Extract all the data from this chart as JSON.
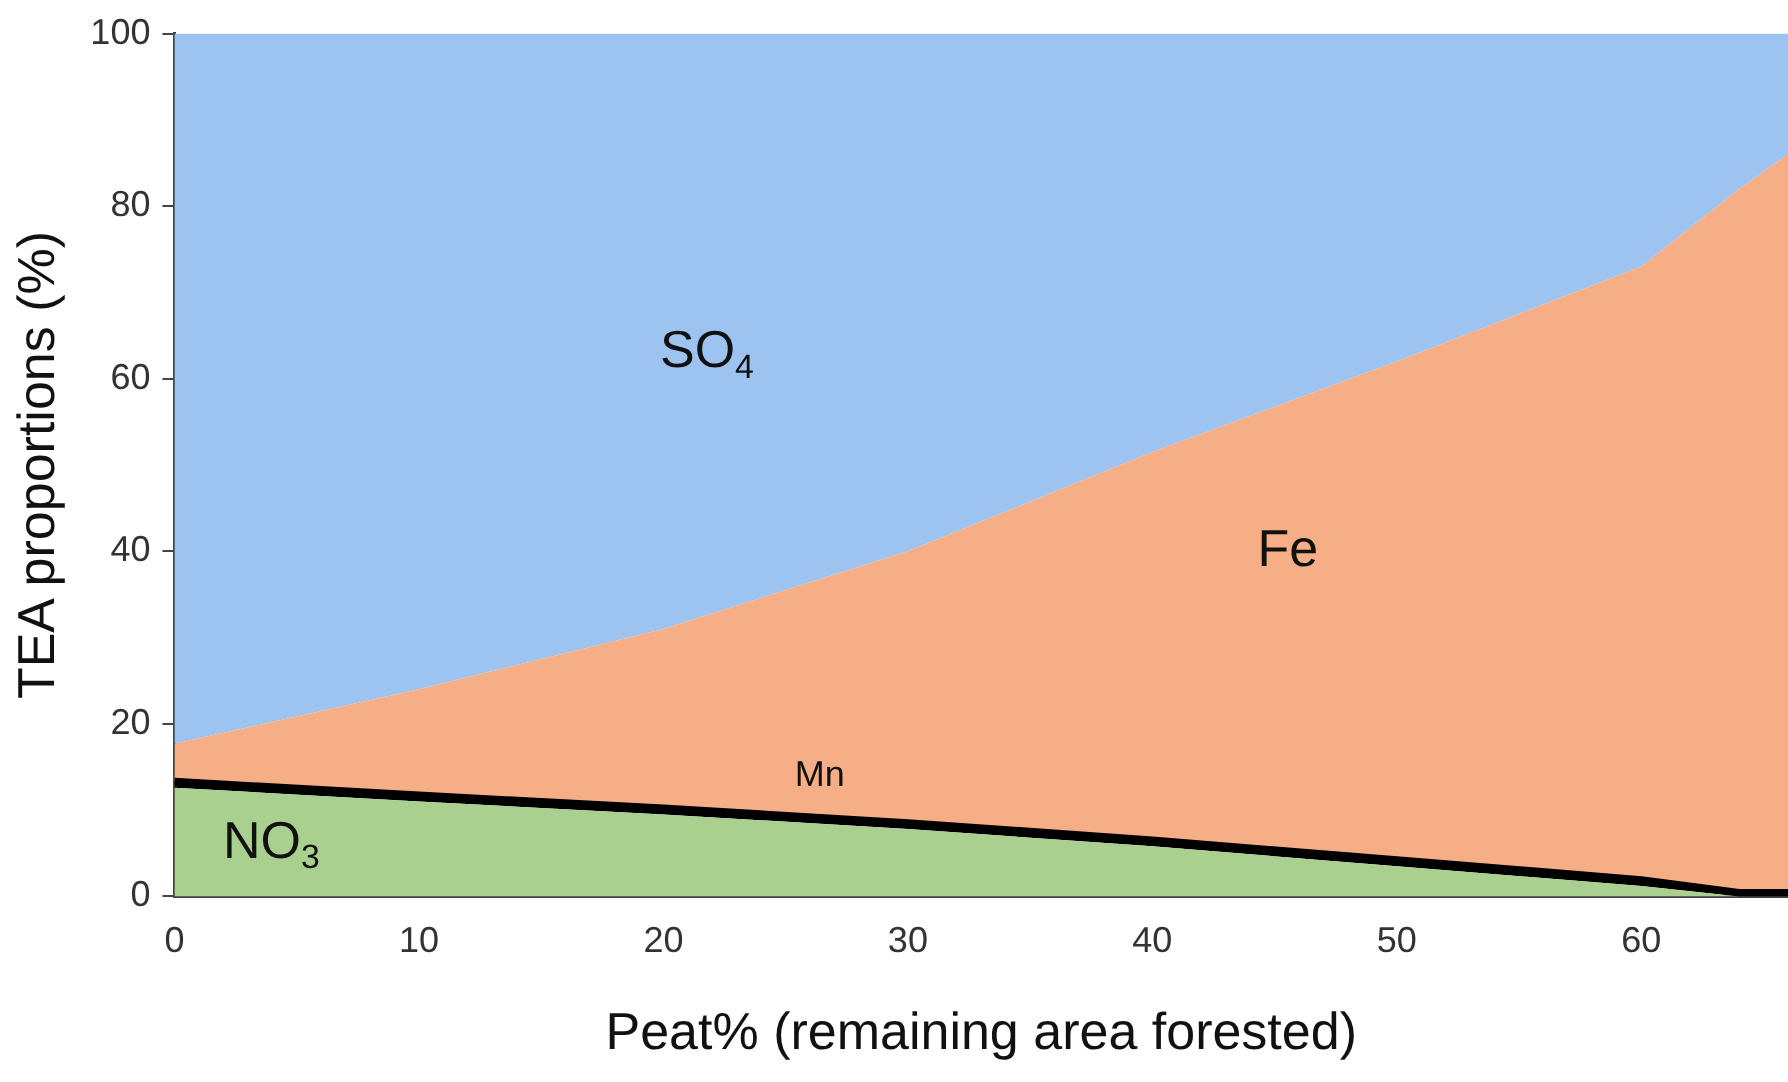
{
  "chart_data": {
    "type": "area",
    "stacked": true,
    "xlabel": "Peat% (remaining area forested)",
    "ylabel": "TEA proportions (%)",
    "x": [
      0,
      10,
      20,
      30,
      40,
      50,
      60,
      64,
      66
    ],
    "series": [
      {
        "name": "NO$_{3}$",
        "color": "#a9d08e",
        "values": [
          12.6,
          11,
          9.5,
          7.8,
          5.8,
          3.5,
          1.2,
          0,
          0
        ]
      },
      {
        "name": "Mn",
        "color": "#000000",
        "values": [
          0.8,
          0.8,
          0.8,
          0.8,
          0.8,
          0.8,
          0.8,
          0.5,
          0.5
        ]
      },
      {
        "name": "Fe",
        "color": "#f5ae86",
        "values": [
          4.3,
          12.2,
          20.7,
          31.4,
          44.9,
          57.7,
          71,
          81.5,
          85.5
        ]
      },
      {
        "name": "SO$_{4}$",
        "color": "#9dc3f0",
        "values": [
          82.3,
          76,
          69,
          60,
          48.5,
          38,
          27,
          18,
          14
        ]
      }
    ],
    "xlim": [
      0,
      66
    ],
    "xticks": [
      0,
      10,
      20,
      30,
      40,
      50,
      60
    ],
    "ylim": [
      0,
      100
    ],
    "yticks": [
      0,
      20,
      40,
      60,
      80,
      100
    ],
    "grid": false,
    "legend": false
  }
}
